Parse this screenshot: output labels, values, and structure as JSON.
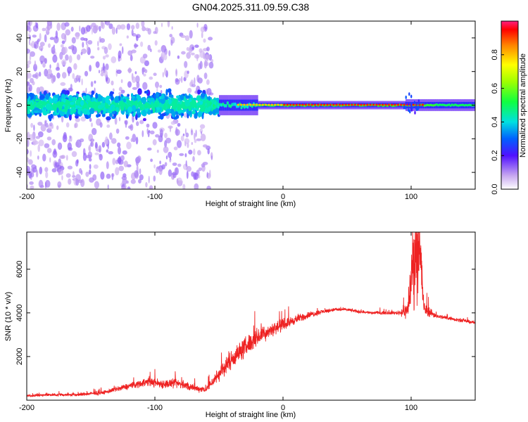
{
  "chart_data": [
    {
      "type": "heatmap",
      "title": "GN04.2025.311.09.59.C38",
      "xlabel": "Height of straight line (km)",
      "ylabel": "Frequency (Hz)",
      "xlim": [
        -200,
        150
      ],
      "ylim": [
        -50,
        50
      ],
      "xticks": [
        -200,
        -100,
        0,
        100
      ],
      "yticks": [
        -40,
        -20,
        0,
        20,
        40
      ],
      "colorbar": {
        "label": "Normalized spectral amplitude",
        "range": [
          0,
          1
        ],
        "ticks": [
          "0.0",
          "0.2",
          "0.4",
          "0.6",
          "0.8"
        ],
        "tick_values": [
          0.0,
          0.2,
          0.4,
          0.6,
          0.8
        ]
      },
      "regions": [
        {
          "x": [
            -200,
            -60
          ],
          "freq_spread_hz": 45,
          "amplitude": 0.2
        },
        {
          "x": [
            -60,
            -20
          ],
          "freq_spread_hz": 10,
          "amplitude": 0.35
        },
        {
          "x": [
            -20,
            150
          ],
          "freq_spread_hz": 3,
          "amplitude": 0.9
        }
      ],
      "colors": {
        "low": "#d8b8f0",
        "mid": "#4020ff",
        "high": "#ff2020"
      }
    },
    {
      "type": "line",
      "xlabel": "Height of straight line (km)",
      "ylabel": "SNR (10 * v/v)",
      "xlim": [
        -200,
        150
      ],
      "ylim": [
        0,
        7700
      ],
      "xticks": [
        -200,
        -100,
        0,
        100
      ],
      "yticks": [
        2000,
        4000,
        6000
      ],
      "series": [
        {
          "name": "SNR",
          "color": "#ee2222",
          "x": [
            -200,
            -180,
            -160,
            -140,
            -120,
            -105,
            -95,
            -80,
            -70,
            -60,
            -50,
            -40,
            -30,
            -20,
            -10,
            0,
            10,
            20,
            30,
            40,
            50,
            60,
            70,
            80,
            90,
            97,
            100,
            103,
            106,
            110,
            120,
            130,
            140,
            150
          ],
          "values": [
            200,
            250,
            250,
            350,
            650,
            850,
            750,
            750,
            550,
            500,
            1200,
            1900,
            2400,
            2900,
            3200,
            3450,
            3700,
            3900,
            4050,
            4150,
            4150,
            4050,
            4000,
            4000,
            4000,
            4100,
            5500,
            6800,
            7600,
            4200,
            3850,
            3750,
            3650,
            3550
          ],
          "noise": [
            60,
            80,
            90,
            110,
            180,
            240,
            260,
            250,
            200,
            180,
            420,
            520,
            560,
            520,
            380,
            300,
            240,
            190,
            120,
            100,
            90,
            90,
            90,
            90,
            100,
            500,
            1800,
            2600,
            3000,
            400,
            120,
            110,
            100,
            100
          ]
        }
      ]
    }
  ]
}
